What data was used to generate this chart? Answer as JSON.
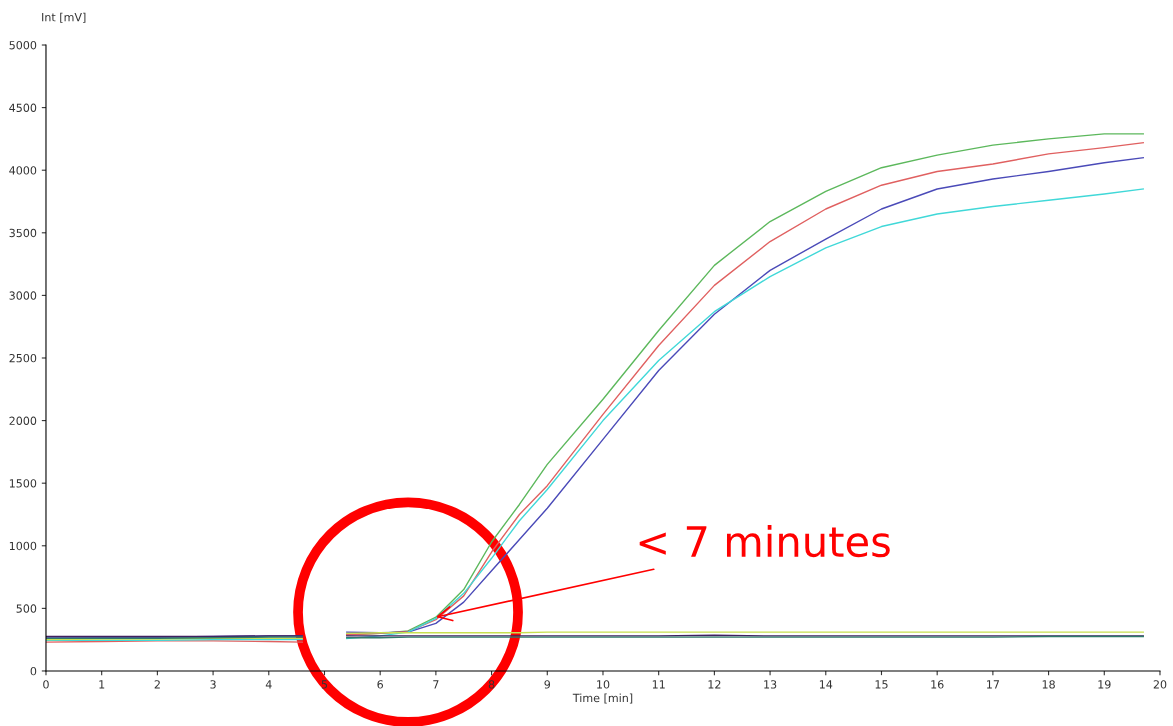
{
  "chart_data": {
    "type": "line",
    "xlabel": "Time [min]",
    "ylabel": "Int [mV]",
    "xlim": [
      0,
      20
    ],
    "ylim": [
      0,
      5000
    ],
    "xticks": [
      0,
      1,
      2,
      3,
      4,
      5,
      6,
      7,
      8,
      9,
      10,
      11,
      12,
      13,
      14,
      15,
      16,
      17,
      18,
      19,
      20
    ],
    "yticks": [
      0,
      500,
      1000,
      1500,
      2000,
      2500,
      3000,
      3500,
      4000,
      4500,
      5000
    ],
    "x": [
      0,
      1,
      2,
      3,
      4,
      4.6,
      5,
      5.4,
      6,
      6.5,
      7,
      7.5,
      8,
      8.5,
      9,
      10,
      11,
      12,
      13,
      14,
      15,
      16,
      17,
      18,
      19,
      19.7
    ],
    "series": [
      {
        "color": "#5cb85c",
        "values": [
          260,
          265,
          265,
          270,
          275,
          280,
          null,
          290,
          300,
          320,
          430,
          650,
          1030,
          1330,
          1650,
          2170,
          2720,
          3240,
          3590,
          3830,
          4020,
          4120,
          4200,
          4250,
          4290,
          4290
        ]
      },
      {
        "color": "#e06060",
        "values": [
          230,
          235,
          240,
          240,
          235,
          230,
          null,
          290,
          300,
          315,
          410,
          600,
          950,
          1250,
          1480,
          2050,
          2600,
          3080,
          3430,
          3690,
          3880,
          3990,
          4050,
          4130,
          4180,
          4220
        ]
      },
      {
        "color": "#4a4ab8",
        "values": [
          270,
          270,
          270,
          275,
          280,
          280,
          null,
          310,
          305,
          310,
          380,
          550,
          800,
          1050,
          1300,
          1850,
          2400,
          2850,
          3200,
          3450,
          3690,
          3850,
          3930,
          3990,
          4060,
          4100
        ]
      },
      {
        "color": "#40d8d8",
        "values": [
          245,
          245,
          245,
          250,
          250,
          250,
          null,
          260,
          280,
          310,
          420,
          620,
          900,
          1200,
          1450,
          2000,
          2480,
          2870,
          3150,
          3380,
          3550,
          3650,
          3710,
          3760,
          3810,
          3850
        ]
      },
      {
        "color": "#c8e050",
        "values": [
          250,
          255,
          255,
          260,
          260,
          260,
          null,
          300,
          305,
          305,
          305,
          305,
          305,
          305,
          310,
          310,
          310,
          310,
          310,
          310,
          310,
          310,
          310,
          310,
          310,
          310
        ]
      },
      {
        "color": "#402060",
        "values": [
          275,
          275,
          275,
          275,
          280,
          280,
          null,
          280,
          280,
          280,
          280,
          280,
          280,
          280,
          280,
          280,
          280,
          285,
          280,
          280,
          280,
          280,
          280,
          280,
          280,
          280
        ]
      },
      {
        "color": "#2e7a6a",
        "values": [
          260,
          260,
          260,
          265,
          270,
          270,
          null,
          265,
          265,
          270,
          270,
          270,
          270,
          270,
          270,
          270,
          270,
          270,
          270,
          270,
          270,
          270,
          270,
          275,
          275,
          275
        ]
      }
    ],
    "annotations": [
      {
        "text": "< 7 minutes",
        "x": 7,
        "y": 430
      }
    ],
    "grid": false,
    "legend": false,
    "marker": "none",
    "line_style": "solid"
  }
}
